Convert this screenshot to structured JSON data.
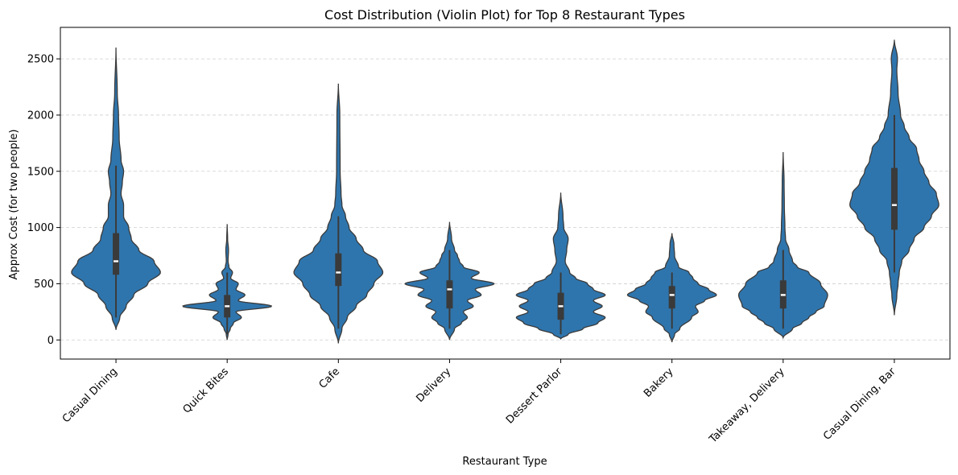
{
  "chart_data": {
    "type": "violin",
    "title": "Cost Distribution (Violin Plot) for Top 8 Restaurant Types",
    "xlabel": "Restaurant Type",
    "ylabel": "Approx Cost (for two people)",
    "ylim": [
      -170,
      2780
    ],
    "yticks": [
      0,
      500,
      1000,
      1500,
      2000,
      2500
    ],
    "grid": true,
    "color": "#2f75ad",
    "categories": [
      "Casual Dining",
      "Quick Bites",
      "Cafe",
      "Delivery",
      "Dessert Parlor",
      "Bakery",
      "Takeaway, Delivery",
      "Casual Dining, Bar"
    ],
    "violins": [
      {
        "min": 90,
        "max": 2600,
        "q1": 580,
        "median": 700,
        "q3": 950,
        "whisker_low": 200,
        "whisker_high": 1550,
        "profile": [
          [
            90,
            0
          ],
          [
            200,
            0.03
          ],
          [
            300,
            0.08
          ],
          [
            400,
            0.14
          ],
          [
            500,
            0.25
          ],
          [
            600,
            0.35
          ],
          [
            700,
            0.3
          ],
          [
            800,
            0.18
          ],
          [
            900,
            0.12
          ],
          [
            1000,
            0.1
          ],
          [
            1100,
            0.06
          ],
          [
            1200,
            0.06
          ],
          [
            1300,
            0.04
          ],
          [
            1400,
            0.05
          ],
          [
            1500,
            0.06
          ],
          [
            1600,
            0.04
          ],
          [
            1800,
            0.025
          ],
          [
            2000,
            0.02
          ],
          [
            2200,
            0.01
          ],
          [
            2600,
            0
          ]
        ]
      },
      {
        "min": 0,
        "max": 1030,
        "q1": 200,
        "median": 300,
        "q3": 400,
        "whisker_low": 50,
        "whisker_high": 600,
        "profile": [
          [
            0,
            0
          ],
          [
            50,
            0.02
          ],
          [
            100,
            0.07
          ],
          [
            150,
            0.14
          ],
          [
            200,
            0.32
          ],
          [
            250,
            0.2
          ],
          [
            300,
            1.0
          ],
          [
            350,
            0.25
          ],
          [
            400,
            0.4
          ],
          [
            450,
            0.2
          ],
          [
            500,
            0.25
          ],
          [
            550,
            0.08
          ],
          [
            600,
            0.12
          ],
          [
            650,
            0.04
          ],
          [
            700,
            0.02
          ],
          [
            800,
            0.03
          ],
          [
            900,
            0.01
          ],
          [
            1030,
            0
          ]
        ]
      },
      {
        "min": -30,
        "max": 2280,
        "q1": 480,
        "median": 600,
        "q3": 770,
        "whisker_low": 100,
        "whisker_high": 1100,
        "profile": [
          [
            -30,
            0
          ],
          [
            100,
            0.02
          ],
          [
            200,
            0.05
          ],
          [
            300,
            0.1
          ],
          [
            400,
            0.16
          ],
          [
            500,
            0.2
          ],
          [
            600,
            0.25
          ],
          [
            700,
            0.22
          ],
          [
            800,
            0.14
          ],
          [
            900,
            0.1
          ],
          [
            1000,
            0.06
          ],
          [
            1100,
            0.04
          ],
          [
            1200,
            0.02
          ],
          [
            1300,
            0.015
          ],
          [
            1500,
            0.01
          ],
          [
            2000,
            0.008
          ],
          [
            2280,
            0
          ]
        ]
      },
      {
        "min": 0,
        "max": 1050,
        "q1": 280,
        "median": 450,
        "q3": 530,
        "whisker_low": 100,
        "whisker_high": 800,
        "profile": [
          [
            0,
            0
          ],
          [
            100,
            0.05
          ],
          [
            150,
            0.12
          ],
          [
            200,
            0.18
          ],
          [
            250,
            0.14
          ],
          [
            300,
            0.24
          ],
          [
            350,
            0.18
          ],
          [
            400,
            0.32
          ],
          [
            450,
            0.26
          ],
          [
            500,
            0.45
          ],
          [
            550,
            0.22
          ],
          [
            600,
            0.3
          ],
          [
            650,
            0.14
          ],
          [
            700,
            0.1
          ],
          [
            750,
            0.08
          ],
          [
            800,
            0.05
          ],
          [
            900,
            0.02
          ],
          [
            1050,
            0
          ]
        ]
      },
      {
        "min": 10,
        "max": 1310,
        "q1": 180,
        "median": 300,
        "q3": 420,
        "whisker_low": 50,
        "whisker_high": 600,
        "profile": [
          [
            10,
            0
          ],
          [
            50,
            0.05
          ],
          [
            100,
            0.15
          ],
          [
            150,
            0.25
          ],
          [
            200,
            0.3
          ],
          [
            250,
            0.22
          ],
          [
            300,
            0.28
          ],
          [
            350,
            0.22
          ],
          [
            400,
            0.3
          ],
          [
            450,
            0.22
          ],
          [
            500,
            0.18
          ],
          [
            550,
            0.1
          ],
          [
            600,
            0.06
          ],
          [
            700,
            0.03
          ],
          [
            800,
            0.04
          ],
          [
            900,
            0.05
          ],
          [
            1000,
            0.02
          ],
          [
            1100,
            0.015
          ],
          [
            1310,
            0
          ]
        ]
      },
      {
        "min": -20,
        "max": 950,
        "q1": 280,
        "median": 400,
        "q3": 480,
        "whisker_low": 100,
        "whisker_high": 600,
        "profile": [
          [
            -20,
            0
          ],
          [
            50,
            0.02
          ],
          [
            100,
            0.06
          ],
          [
            200,
            0.15
          ],
          [
            250,
            0.2
          ],
          [
            300,
            0.18
          ],
          [
            350,
            0.25
          ],
          [
            400,
            0.34
          ],
          [
            450,
            0.28
          ],
          [
            500,
            0.2
          ],
          [
            550,
            0.16
          ],
          [
            600,
            0.13
          ],
          [
            650,
            0.05
          ],
          [
            750,
            0.02
          ],
          [
            850,
            0.015
          ],
          [
            950,
            0
          ]
        ]
      },
      {
        "min": 20,
        "max": 1670,
        "q1": 280,
        "median": 400,
        "q3": 530,
        "whisker_low": 100,
        "whisker_high": 800,
        "profile": [
          [
            20,
            0
          ],
          [
            100,
            0.08
          ],
          [
            150,
            0.16
          ],
          [
            200,
            0.22
          ],
          [
            250,
            0.28
          ],
          [
            300,
            0.35
          ],
          [
            400,
            0.38
          ],
          [
            500,
            0.32
          ],
          [
            600,
            0.22
          ],
          [
            650,
            0.12
          ],
          [
            700,
            0.08
          ],
          [
            800,
            0.05
          ],
          [
            900,
            0.02
          ],
          [
            1000,
            0.015
          ],
          [
            1200,
            0.01
          ],
          [
            1400,
            0.008
          ],
          [
            1670,
            0
          ]
        ]
      },
      {
        "min": 220,
        "max": 2670,
        "q1": 980,
        "median": 1200,
        "q3": 1530,
        "whisker_low": 600,
        "whisker_high": 2000,
        "profile": [
          [
            220,
            0
          ],
          [
            400,
            0.02
          ],
          [
            500,
            0.03
          ],
          [
            600,
            0.04
          ],
          [
            700,
            0.06
          ],
          [
            800,
            0.12
          ],
          [
            900,
            0.16
          ],
          [
            1000,
            0.24
          ],
          [
            1100,
            0.3
          ],
          [
            1200,
            0.36
          ],
          [
            1300,
            0.34
          ],
          [
            1400,
            0.28
          ],
          [
            1500,
            0.24
          ],
          [
            1600,
            0.2
          ],
          [
            1700,
            0.18
          ],
          [
            1800,
            0.12
          ],
          [
            1900,
            0.08
          ],
          [
            2000,
            0.05
          ],
          [
            2200,
            0.03
          ],
          [
            2400,
            0.02
          ],
          [
            2500,
            0.025
          ],
          [
            2670,
            0
          ]
        ]
      }
    ]
  }
}
